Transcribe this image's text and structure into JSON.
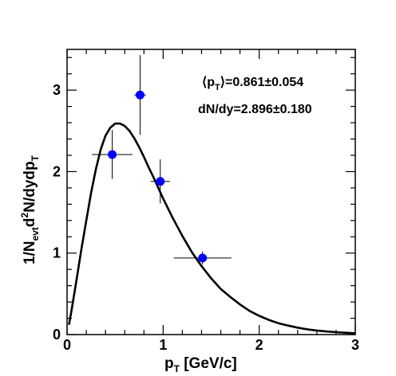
{
  "chart_data": {
    "type": "scatter",
    "title": "",
    "x_axis": {
      "label_main": "p",
      "label_sub": "T",
      "label_unit": " [GeV/c]",
      "range": [
        0,
        3
      ],
      "ticks": [
        "0",
        "1",
        "2",
        "3"
      ]
    },
    "y_axis": {
      "label_a": "1/N",
      "label_a_sub": "evt",
      "label_b": "d",
      "label_b_sup": "2",
      "label_c": "N/dydp",
      "label_c_sub": "T",
      "range": [
        0,
        3.5
      ],
      "ticks": [
        "0",
        "1",
        "2",
        "3"
      ]
    },
    "annotations": {
      "mean_pt_prefix": "⟨p",
      "mean_pt_sub": "T",
      "mean_pt_value": "⟩=0.861±0.054",
      "dndy": "dN/dy=2.896±0.180"
    },
    "points": [
      {
        "x": 0.47,
        "y": 2.21,
        "xerr": 0.21,
        "yerr": 0.3
      },
      {
        "x": 0.76,
        "y": 2.94,
        "xerr": 0.06,
        "yerr": 0.49
      },
      {
        "x": 0.97,
        "y": 1.88,
        "xerr": 0.1,
        "yerr": 0.27
      },
      {
        "x": 1.41,
        "y": 0.94,
        "xerr": 0.3,
        "yerr": 0.08
      }
    ],
    "fit_curve": {
      "x": [
        0.02,
        0.05,
        0.1,
        0.15,
        0.2,
        0.25,
        0.3,
        0.35,
        0.4,
        0.45,
        0.5,
        0.55,
        0.6,
        0.65,
        0.7,
        0.75,
        0.8,
        0.85,
        0.9,
        0.95,
        1.0,
        1.1,
        1.2,
        1.3,
        1.4,
        1.5,
        1.6,
        1.7,
        1.8,
        1.9,
        2.0,
        2.1,
        2.2,
        2.3,
        2.4,
        2.5,
        2.6,
        2.7,
        2.8,
        2.9,
        3.0
      ],
      "y": [
        0.12,
        0.32,
        0.68,
        1.05,
        1.4,
        1.74,
        2.03,
        2.27,
        2.44,
        2.54,
        2.59,
        2.59,
        2.56,
        2.5,
        2.41,
        2.3,
        2.18,
        2.05,
        1.93,
        1.8,
        1.67,
        1.43,
        1.21,
        1.01,
        0.84,
        0.69,
        0.56,
        0.46,
        0.37,
        0.29,
        0.23,
        0.18,
        0.14,
        0.11,
        0.085,
        0.065,
        0.05,
        0.038,
        0.029,
        0.022,
        0.016
      ]
    },
    "colors": {
      "marker": "#0000ff",
      "line": "#000000",
      "axis": "#000000"
    },
    "grid": false,
    "legend": "none"
  }
}
